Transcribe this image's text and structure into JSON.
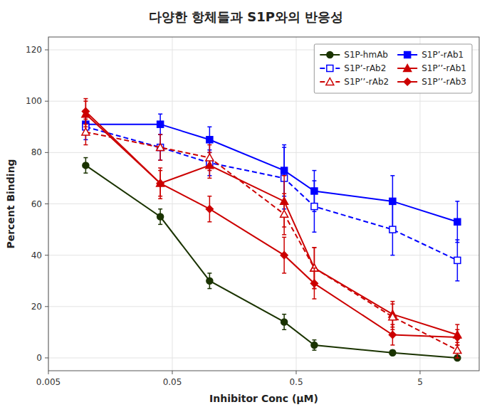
{
  "chart_data": {
    "type": "line",
    "title": "다양한 항체들과 S1P와의 반응성",
    "x_label": "Inhibitor Conc (μM)",
    "y_label": "Percent Binding",
    "log": "x",
    "grid": true,
    "legend": "upper right",
    "xlim": [
      0.005,
      15
    ],
    "xticks": [
      0.005,
      0.05,
      0.5,
      5
    ],
    "ylim": [
      -5,
      125
    ],
    "yticks": [
      0,
      20,
      40,
      60,
      80,
      100,
      120
    ],
    "x": [
      0.01,
      0.04,
      0.1,
      0.4,
      0.7,
      3.0,
      10.0
    ],
    "series": [
      {
        "name": "S1P-hmAb",
        "color": "#1a3300",
        "marker": "circle",
        "line_style": "solid",
        "values": [
          75,
          55,
          30,
          14,
          5,
          2,
          0
        ],
        "errors": [
          3,
          3,
          3,
          3,
          2,
          1,
          0.5
        ]
      },
      {
        "name": "S1P’-rAb1",
        "color": "#0000ff",
        "marker": "square",
        "line_style": "solid",
        "values": [
          91,
          91,
          85,
          73,
          65,
          61,
          53
        ],
        "errors": [
          4,
          4,
          5,
          10,
          8,
          10,
          8
        ]
      },
      {
        "name": "S1P’-rAb2",
        "color": "#0000ff",
        "marker": "square-open",
        "line_style": "dashed",
        "values": [
          90,
          82,
          76,
          70,
          59,
          50,
          38
        ],
        "errors": [
          5,
          5,
          5,
          12,
          10,
          10,
          8
        ]
      },
      {
        "name": "S1P’’-rAb1",
        "color": "#cc0000",
        "marker": "triangle",
        "line_style": "solid",
        "values": [
          95,
          68,
          75,
          61,
          35,
          17,
          9
        ],
        "errors": [
          5,
          6,
          5,
          10,
          8,
          5,
          4
        ]
      },
      {
        "name": "S1P’’-rAb2",
        "color": "#cc0000",
        "marker": "triangle-open",
        "line_style": "dashed",
        "values": [
          88,
          82,
          78,
          56,
          35,
          16,
          3
        ],
        "errors": [
          5,
          5,
          5,
          8,
          8,
          5,
          3
        ]
      },
      {
        "name": "S1P’’-rAb3",
        "color": "#cc0000",
        "marker": "diamond",
        "line_style": "solid",
        "values": [
          96,
          68,
          58,
          40,
          29,
          9,
          8
        ],
        "errors": [
          5,
          5,
          5,
          7,
          6,
          4,
          3
        ]
      }
    ]
  }
}
